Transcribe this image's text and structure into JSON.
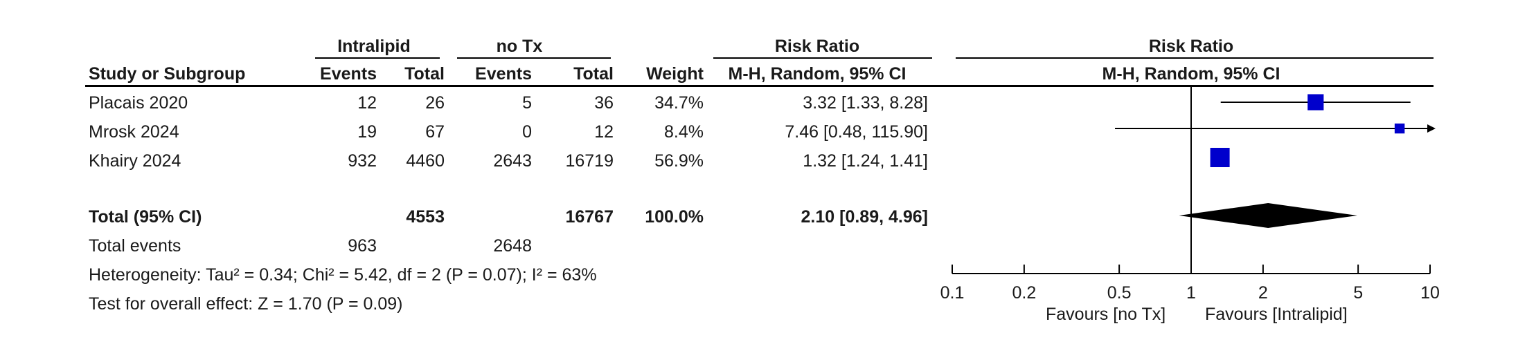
{
  "headers": {
    "group1": "Intralipid",
    "group2": "no Tx",
    "rr_left_top": "Risk Ratio",
    "rr_left_sub": "M-H, Random, 95% CI",
    "rr_right_top": "Risk Ratio",
    "rr_right_sub": "M-H, Random, 95% CI",
    "study": "Study or Subgroup",
    "events1": "Events",
    "total1": "Total",
    "events2": "Events",
    "total2": "Total",
    "weight": "Weight"
  },
  "studies": [
    {
      "name": "Placais 2020",
      "events1": "12",
      "total1": "26",
      "events2": "5",
      "total2": "36",
      "weight": "34.7%",
      "ci_text": "3.32 [1.33, 8.28]"
    },
    {
      "name": "Mrosk 2024",
      "events1": "19",
      "total1": "67",
      "events2": "0",
      "total2": "12",
      "weight": "8.4%",
      "ci_text": "7.46 [0.48, 115.90]"
    },
    {
      "name": "Khairy 2024",
      "events1": "932",
      "total1": "4460",
      "events2": "2643",
      "total2": "16719",
      "weight": "56.9%",
      "ci_text": "1.32 [1.24, 1.41]"
    }
  ],
  "total": {
    "label": "Total (95% CI)",
    "total1": "4553",
    "total2": "16767",
    "weight": "100.0%",
    "ci_text": "2.10 [0.89, 4.96]"
  },
  "total_events": {
    "label": "Total events",
    "events1": "963",
    "events2": "2648"
  },
  "heterogeneity": "Heterogeneity: Tau² = 0.34; Chi² = 5.42, df = 2 (P = 0.07); I² = 63%",
  "overall_effect": "Test for overall effect: Z = 1.70 (P = 0.09)",
  "axis": {
    "favours_left": "Favours [no Tx]",
    "favours_right": "Favours [Intralipid]"
  },
  "colors": {
    "marker": "#0000cc",
    "diamond": "#000000",
    "line": "#000000"
  },
  "chart_data": {
    "type": "forest",
    "scale": "log",
    "xlim": [
      0.1,
      10
    ],
    "ticks": [
      {
        "value": 0.1,
        "label": "0.1"
      },
      {
        "value": 0.2,
        "label": "0.2"
      },
      {
        "value": 0.5,
        "label": "0.5"
      },
      {
        "value": 1,
        "label": "1"
      },
      {
        "value": 2,
        "label": "2"
      },
      {
        "value": 5,
        "label": "5"
      },
      {
        "value": 10,
        "label": "10"
      }
    ],
    "null_value": 1,
    "studies": [
      {
        "name": "Placais 2020",
        "rr": 3.32,
        "lower": 1.33,
        "upper": 8.28,
        "weight": 34.7
      },
      {
        "name": "Mrosk 2024",
        "rr": 7.46,
        "lower": 0.48,
        "upper": 115.9,
        "weight": 8.4
      },
      {
        "name": "Khairy 2024",
        "rr": 1.32,
        "lower": 1.24,
        "upper": 1.41,
        "weight": 56.9
      }
    ],
    "pooled": {
      "rr": 2.1,
      "lower": 0.89,
      "upper": 4.96
    }
  }
}
